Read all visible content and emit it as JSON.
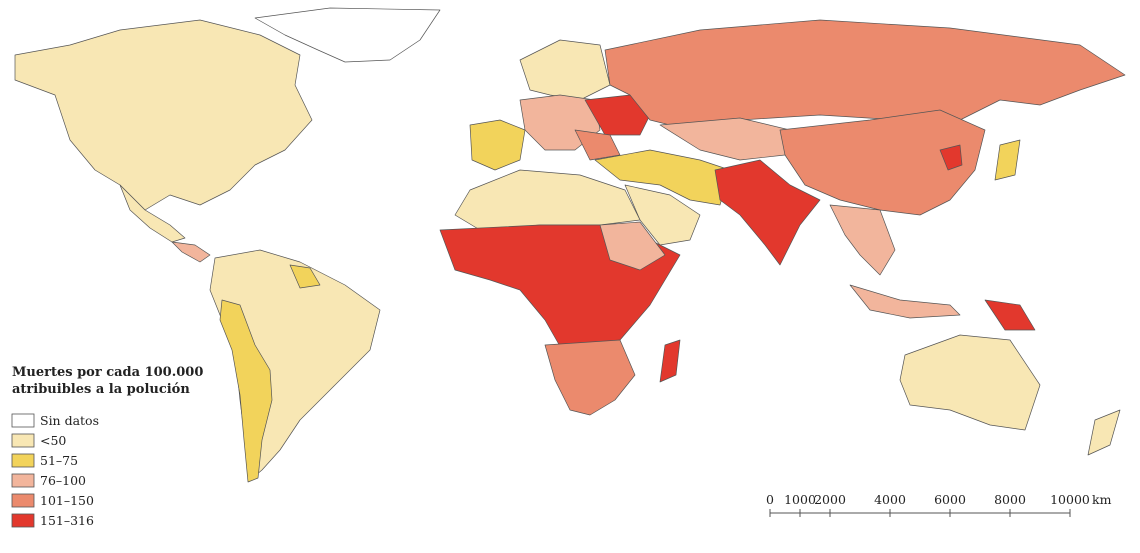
{
  "legend": {
    "title": [
      "Muertes por cada 100.000",
      "atribuibles a la polución"
    ],
    "items": [
      {
        "label": "Sin datos",
        "color": "#ffffff"
      },
      {
        "label": "<50",
        "color": "#f8e7b4"
      },
      {
        "label": "51–75",
        "color": "#f2d35b"
      },
      {
        "label": "76–100",
        "color": "#f2b59c"
      },
      {
        "label": "101–150",
        "color": "#eb8a6d"
      },
      {
        "label": "151–316",
        "color": "#e2382d"
      }
    ]
  },
  "scale": {
    "ticks": [
      0,
      1000,
      2000,
      4000,
      6000,
      8000,
      10000
    ],
    "unit": "km"
  }
}
